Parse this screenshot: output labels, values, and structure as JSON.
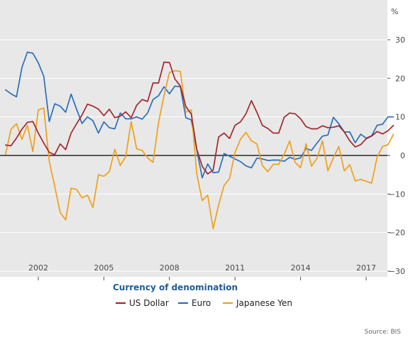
{
  "chart_data": {
    "type": "line",
    "title": "",
    "xlabel": "",
    "ylabel": "%",
    "ylim": [
      -30,
      35
    ],
    "xlim": [
      2000.5,
      2018.0
    ],
    "y_ticks": [
      30,
      20,
      10,
      0,
      -10,
      -20,
      -30
    ],
    "x_ticks": [
      2002,
      2005,
      2008,
      2011,
      2014,
      2017
    ],
    "grid": "horizontal",
    "zero_line": true,
    "legend": {
      "title": "Currency of denomination",
      "placement": "bottom"
    },
    "source": "Source: BIS",
    "series": [
      {
        "name": "US Dollar",
        "color": "#a4262c",
        "points": [
          [
            2000.5,
            2.7
          ],
          [
            2000.75,
            2.5
          ],
          [
            2001.0,
            4.5
          ],
          [
            2001.25,
            6.8
          ],
          [
            2001.5,
            8.6
          ],
          [
            2001.75,
            8.8
          ],
          [
            2002.0,
            5.8
          ],
          [
            2002.25,
            3.2
          ],
          [
            2002.5,
            0.8
          ],
          [
            2002.75,
            0.2
          ],
          [
            2003.0,
            3
          ],
          [
            2003.25,
            1.5
          ],
          [
            2003.5,
            5.8
          ],
          [
            2003.75,
            8.2
          ],
          [
            2004.0,
            10.5
          ],
          [
            2004.25,
            13.3
          ],
          [
            2004.5,
            12.8
          ],
          [
            2004.75,
            12
          ],
          [
            2005.0,
            10.3
          ],
          [
            2005.25,
            12
          ],
          [
            2005.5,
            9.8
          ],
          [
            2005.75,
            10.2
          ],
          [
            2006.0,
            11.3
          ],
          [
            2006.25,
            9.8
          ],
          [
            2006.5,
            13
          ],
          [
            2006.75,
            14.5
          ],
          [
            2007.0,
            14
          ],
          [
            2007.25,
            18.8
          ],
          [
            2007.5,
            18.8
          ],
          [
            2007.75,
            24.2
          ],
          [
            2008.0,
            24.1
          ],
          [
            2008.25,
            19.8
          ],
          [
            2008.5,
            18
          ],
          [
            2008.75,
            12.7
          ],
          [
            2009.0,
            10.7
          ],
          [
            2009.25,
            1.6
          ],
          [
            2009.5,
            -2.8
          ],
          [
            2009.75,
            -4.8
          ],
          [
            2010.0,
            -3.8
          ],
          [
            2010.25,
            4.8
          ],
          [
            2010.5,
            5.8
          ],
          [
            2010.75,
            4.4
          ],
          [
            2011.0,
            7.8
          ],
          [
            2011.25,
            8.7
          ],
          [
            2011.5,
            10.8
          ],
          [
            2011.75,
            14.2
          ],
          [
            2012.0,
            11.2
          ],
          [
            2012.25,
            7.8
          ],
          [
            2012.5,
            7
          ],
          [
            2012.75,
            5.8
          ],
          [
            2013.0,
            5.8
          ],
          [
            2013.25,
            9.9
          ],
          [
            2013.5,
            11
          ],
          [
            2013.75,
            10.8
          ],
          [
            2014.0,
            9.5
          ],
          [
            2014.25,
            7.5
          ],
          [
            2014.5,
            6.9
          ],
          [
            2014.75,
            6.9
          ],
          [
            2015.0,
            7.7
          ],
          [
            2015.25,
            7.2
          ],
          [
            2015.5,
            7.3
          ],
          [
            2015.75,
            7.7
          ],
          [
            2016.0,
            6.1
          ],
          [
            2016.25,
            3.8
          ],
          [
            2016.5,
            2.2
          ],
          [
            2016.75,
            2.8
          ],
          [
            2017.0,
            4.3
          ],
          [
            2017.25,
            5
          ],
          [
            2017.5,
            6.2
          ],
          [
            2017.75,
            5.6
          ],
          [
            2018.0,
            6.4
          ],
          [
            2018.25,
            7.8
          ]
        ]
      },
      {
        "name": "Euro",
        "color": "#2a6ebb",
        "points": [
          [
            2000.5,
            17
          ],
          [
            2000.75,
            16
          ],
          [
            2001.0,
            15.2
          ],
          [
            2001.25,
            22.8
          ],
          [
            2001.5,
            26.8
          ],
          [
            2001.75,
            26.5
          ],
          [
            2002.0,
            24
          ],
          [
            2002.25,
            20.5
          ],
          [
            2002.5,
            8.8
          ],
          [
            2002.75,
            13.4
          ],
          [
            2003.0,
            12.8
          ],
          [
            2003.25,
            11.2
          ],
          [
            2003.5,
            15.9
          ],
          [
            2003.75,
            12
          ],
          [
            2004.0,
            8.3
          ],
          [
            2004.25,
            10
          ],
          [
            2004.5,
            9
          ],
          [
            2004.75,
            5.8
          ],
          [
            2005.0,
            8.7
          ],
          [
            2005.25,
            7.2
          ],
          [
            2005.5,
            6.9
          ],
          [
            2005.75,
            11
          ],
          [
            2006.0,
            9.5
          ],
          [
            2006.25,
            9.5
          ],
          [
            2006.5,
            10
          ],
          [
            2006.75,
            9.4
          ],
          [
            2007.0,
            11
          ],
          [
            2007.25,
            14.5
          ],
          [
            2007.5,
            15.5
          ],
          [
            2007.75,
            17.8
          ],
          [
            2008.0,
            16
          ],
          [
            2008.25,
            18
          ],
          [
            2008.5,
            17.8
          ],
          [
            2008.75,
            9.8
          ],
          [
            2009.0,
            9.2
          ],
          [
            2009.25,
            1.5
          ],
          [
            2009.5,
            -5.8
          ],
          [
            2009.75,
            -2.2
          ],
          [
            2010.0,
            -4.5
          ],
          [
            2010.25,
            -4.3
          ],
          [
            2010.5,
            0.5
          ],
          [
            2010.75,
            -0.2
          ],
          [
            2011.0,
            -0.9
          ],
          [
            2011.25,
            -1.6
          ],
          [
            2011.5,
            -2.7
          ],
          [
            2011.75,
            -3.2
          ],
          [
            2012.0,
            -0.7
          ],
          [
            2012.25,
            -0.9
          ],
          [
            2012.5,
            -1.3
          ],
          [
            2012.75,
            -1.2
          ],
          [
            2013.0,
            -1.2
          ],
          [
            2013.25,
            -1.5
          ],
          [
            2013.5,
            -0.5
          ],
          [
            2013.75,
            -1
          ],
          [
            2014.0,
            -0.6
          ],
          [
            2014.25,
            1.8
          ],
          [
            2014.5,
            1.3
          ],
          [
            2014.75,
            3.2
          ],
          [
            2015.0,
            5
          ],
          [
            2015.25,
            5.3
          ],
          [
            2015.5,
            9.9
          ],
          [
            2015.75,
            8.2
          ],
          [
            2016.0,
            6.1
          ],
          [
            2016.25,
            6.1
          ],
          [
            2016.5,
            3.3
          ],
          [
            2016.75,
            5.5
          ],
          [
            2017.0,
            4.5
          ],
          [
            2017.25,
            5.1
          ],
          [
            2017.5,
            7.8
          ],
          [
            2017.75,
            8.1
          ],
          [
            2018.0,
            10
          ],
          [
            2018.25,
            10
          ]
        ]
      },
      {
        "name": "Japanese Yen",
        "color": "#f0a018",
        "points": [
          [
            2000.5,
            0.3
          ],
          [
            2000.75,
            6.8
          ],
          [
            2001.0,
            8.2
          ],
          [
            2001.25,
            4.2
          ],
          [
            2001.5,
            7.8
          ],
          [
            2001.75,
            1
          ],
          [
            2002.0,
            11.8
          ],
          [
            2002.25,
            12.3
          ],
          [
            2002.5,
            -1.5
          ],
          [
            2002.75,
            -8
          ],
          [
            2003.0,
            -14.8
          ],
          [
            2003.25,
            -16.7
          ],
          [
            2003.5,
            -8.5
          ],
          [
            2003.75,
            -8.8
          ],
          [
            2004.0,
            -11
          ],
          [
            2004.25,
            -10.3
          ],
          [
            2004.5,
            -13.5
          ],
          [
            2004.75,
            -5
          ],
          [
            2005.0,
            -5.4
          ],
          [
            2005.25,
            -4.2
          ],
          [
            2005.5,
            1.6
          ],
          [
            2005.75,
            -2.6
          ],
          [
            2006.0,
            -0.3
          ],
          [
            2006.25,
            8.8
          ],
          [
            2006.5,
            1.7
          ],
          [
            2006.75,
            1.3
          ],
          [
            2007.0,
            -0.6
          ],
          [
            2007.25,
            -1.8
          ],
          [
            2007.5,
            8.5
          ],
          [
            2007.75,
            15.5
          ],
          [
            2008.0,
            21.5
          ],
          [
            2008.25,
            22
          ],
          [
            2008.5,
            21.8
          ],
          [
            2008.75,
            11.2
          ],
          [
            2009.0,
            11.8
          ],
          [
            2009.25,
            -4.8
          ],
          [
            2009.5,
            -11.7
          ],
          [
            2009.75,
            -10.3
          ],
          [
            2010.0,
            -19
          ],
          [
            2010.25,
            -12.8
          ],
          [
            2010.5,
            -7.8
          ],
          [
            2010.75,
            -6
          ],
          [
            2011.0,
            0.8
          ],
          [
            2011.25,
            4.2
          ],
          [
            2011.5,
            6
          ],
          [
            2011.75,
            3.8
          ],
          [
            2012.0,
            3
          ],
          [
            2012.25,
            -2.6
          ],
          [
            2012.5,
            -4.2
          ],
          [
            2012.75,
            -2.3
          ],
          [
            2013.0,
            -2.3
          ],
          [
            2013.25,
            0.3
          ],
          [
            2013.5,
            3.8
          ],
          [
            2013.75,
            -1.8
          ],
          [
            2014.0,
            -3.2
          ],
          [
            2014.25,
            3
          ],
          [
            2014.5,
            -2.8
          ],
          [
            2014.75,
            -0.8
          ],
          [
            2015.0,
            3.8
          ],
          [
            2015.25,
            -4
          ],
          [
            2015.5,
            -0.6
          ],
          [
            2015.75,
            2.3
          ],
          [
            2016.0,
            -4
          ],
          [
            2016.25,
            -2.4
          ],
          [
            2016.5,
            -6.6
          ],
          [
            2016.75,
            -6.2
          ],
          [
            2017.0,
            -6.7
          ],
          [
            2017.25,
            -7.2
          ],
          [
            2017.5,
            -0.5
          ],
          [
            2017.75,
            2.3
          ],
          [
            2018.0,
            2.8
          ],
          [
            2018.25,
            5.5
          ]
        ]
      }
    ]
  }
}
